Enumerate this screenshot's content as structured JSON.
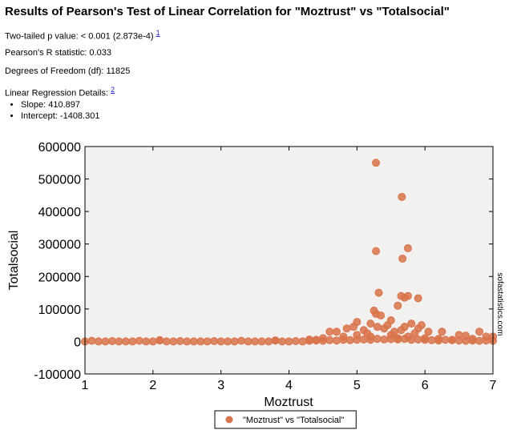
{
  "title": "Results of Pearson's Test of Linear Correlation for \"Moztrust\" vs \"Totalsocial\"",
  "stats": [
    {
      "text": "Two-tailed p value: < 0.001 (2.873e-4)",
      "note": "1"
    },
    {
      "text": "Pearson's R statistic: 0.033"
    },
    {
      "text": "Degrees of Freedom (df): 11825"
    }
  ],
  "regression": {
    "label": "Linear Regression Details:",
    "note": "2",
    "items": [
      "Slope: 410.897",
      "Intercept: -1408.301"
    ]
  },
  "watermark": "sofastatistics.com",
  "chart_data": {
    "type": "scatter",
    "x_label": "Moztrust",
    "y_label": "Totalsocial",
    "xlim": [
      1,
      7
    ],
    "xticks": [
      1,
      2,
      3,
      4,
      5,
      6,
      7
    ],
    "ylim": [
      -100000,
      600000
    ],
    "yticks": [
      -100000,
      0,
      100000,
      200000,
      300000,
      400000,
      500000,
      600000
    ],
    "grid": false,
    "legend": "bottom",
    "series": [
      {
        "name": "\"Moztrust\" vs \"Totalsocial\"",
        "color": "#d9734a",
        "x": [
          1.0,
          1.1,
          1.2,
          1.3,
          1.4,
          1.5,
          1.6,
          1.7,
          1.8,
          1.9,
          2.0,
          2.1,
          2.2,
          2.3,
          2.4,
          2.5,
          2.6,
          2.7,
          2.8,
          2.9,
          3.0,
          3.1,
          3.2,
          3.3,
          3.4,
          3.5,
          3.6,
          3.7,
          3.8,
          3.9,
          4.0,
          4.1,
          4.2,
          4.3,
          4.4,
          4.5,
          4.6,
          4.7,
          4.8,
          4.9,
          5.0,
          5.1,
          5.2,
          5.3,
          5.4,
          5.5,
          5.6,
          5.7,
          5.8,
          5.9,
          6.0,
          6.1,
          6.2,
          6.3,
          6.4,
          6.5,
          6.6,
          6.7,
          6.8,
          6.9,
          7.0,
          5.28,
          5.66,
          5.75,
          5.28,
          5.67,
          5.32,
          5.65,
          5.7,
          5.75,
          5.9,
          5.6,
          5.25,
          5.28,
          5.35,
          5.5,
          5.0,
          5.2,
          5.8,
          4.95,
          5.3,
          5.45,
          5.7,
          5.95,
          5.9,
          4.6,
          4.7,
          4.85,
          5.1,
          5.15,
          5.4,
          5.55,
          5.65,
          5.85,
          6.05,
          6.25,
          6.5,
          6.6,
          6.8,
          6.9,
          7.0,
          4.4,
          4.5,
          4.8,
          5.0,
          5.2,
          5.5,
          5.6,
          5.75,
          6.0,
          6.2,
          6.4,
          6.7,
          2.1,
          3.8,
          4.3
        ],
        "values": [
          0,
          2000,
          0,
          0,
          1000,
          0,
          0,
          0,
          2000,
          0,
          0,
          3000,
          0,
          0,
          1000,
          0,
          0,
          0,
          0,
          1000,
          0,
          0,
          0,
          2000,
          0,
          0,
          0,
          0,
          3000,
          0,
          0,
          1000,
          0,
          2000,
          3000,
          2000,
          4000,
          3000,
          5000,
          4000,
          5000,
          6000,
          5000,
          8000,
          6000,
          7000,
          6000,
          8000,
          5000,
          6000,
          5000,
          4000,
          3000,
          5000,
          4000,
          3000,
          2000,
          3000,
          2000,
          3000,
          2000,
          550000,
          445000,
          287000,
          278000,
          255000,
          150000,
          140000,
          135000,
          140000,
          133000,
          110000,
          95000,
          85000,
          80000,
          65000,
          60000,
          55000,
          55000,
          45000,
          45000,
          50000,
          45000,
          50000,
          40000,
          30000,
          30000,
          40000,
          35000,
          25000,
          40000,
          30000,
          35000,
          25000,
          30000,
          30000,
          20000,
          18000,
          30000,
          15000,
          15000,
          5000,
          10000,
          15000,
          20000,
          15000,
          20000,
          10000,
          15000,
          10000,
          8000,
          5000,
          8000,
          4000,
          3000,
          6000
        ]
      }
    ]
  }
}
